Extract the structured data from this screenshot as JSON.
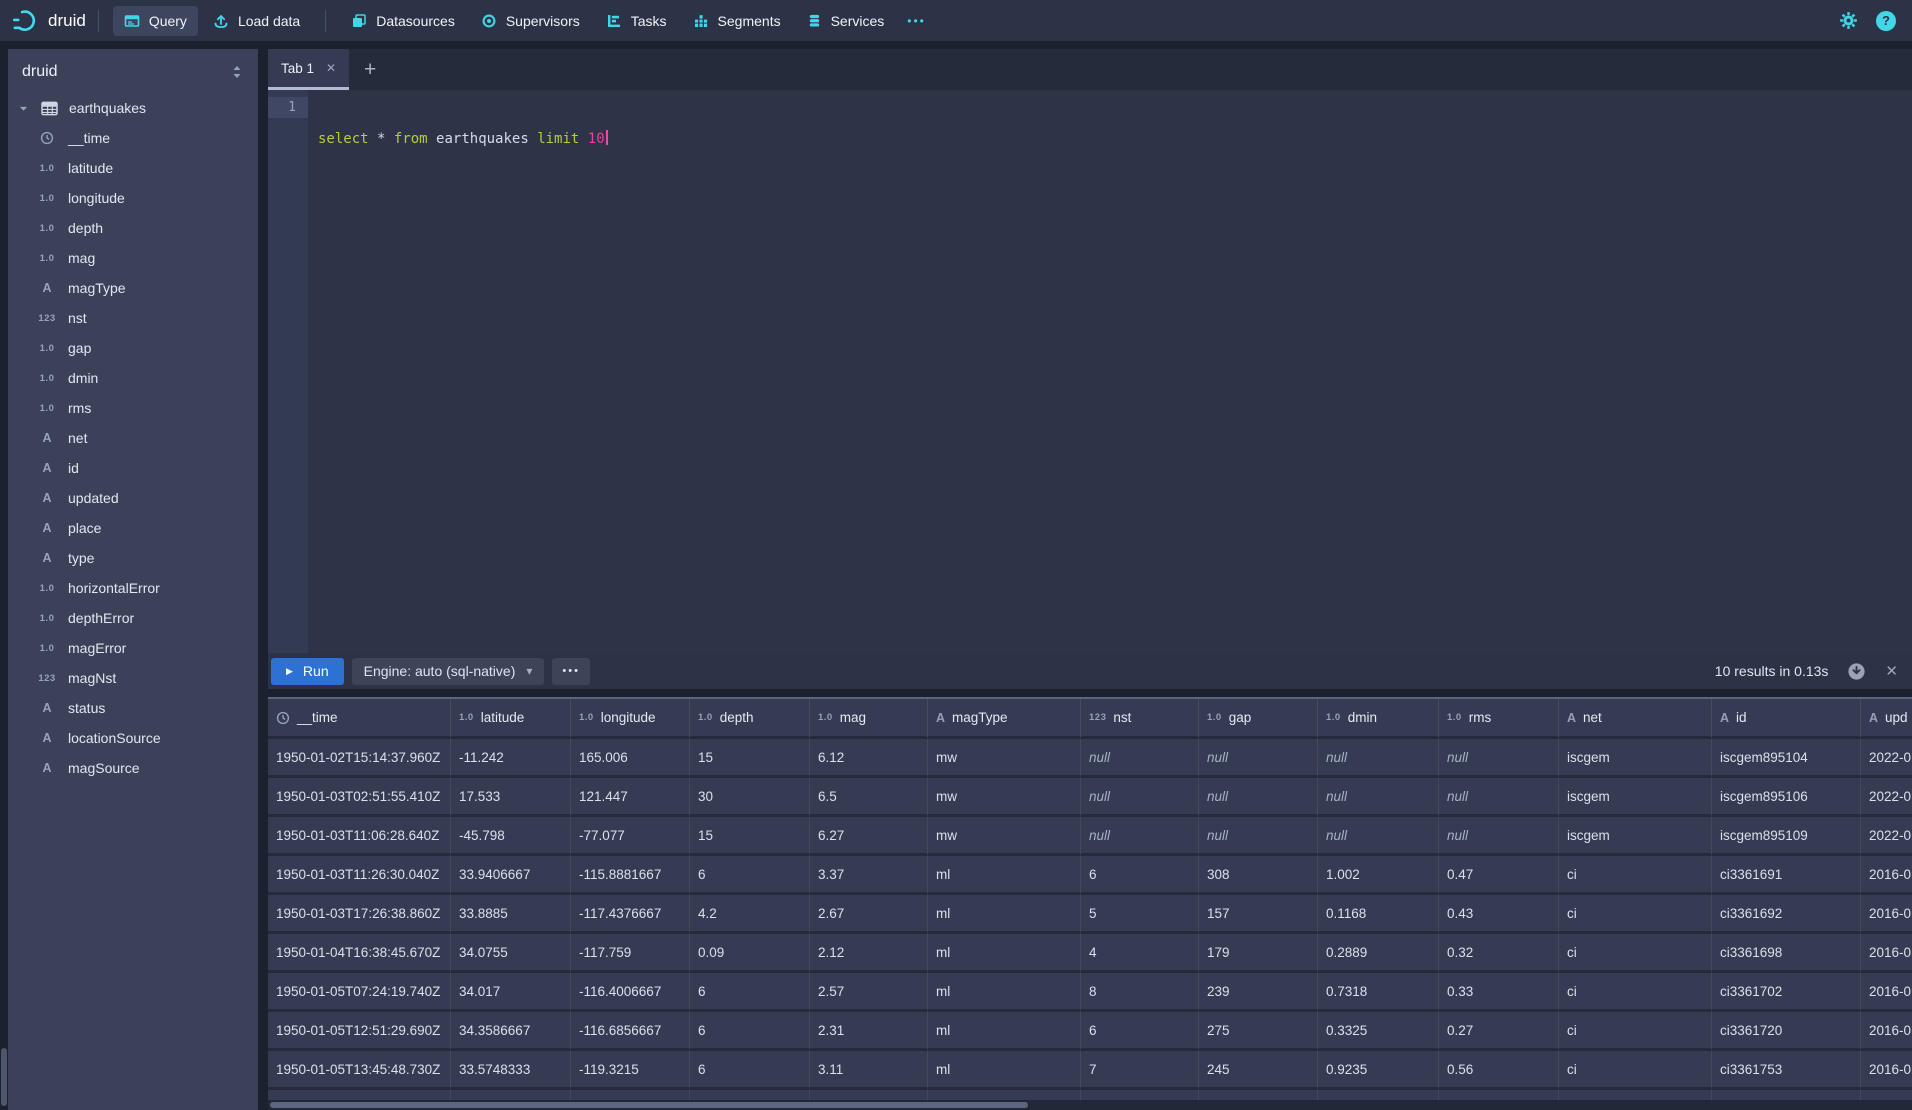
{
  "navbar": {
    "logo_text": "druid",
    "items": [
      {
        "label": "Query"
      },
      {
        "label": "Load data"
      },
      {
        "label": "Datasources"
      },
      {
        "label": "Supervisors"
      },
      {
        "label": "Tasks"
      },
      {
        "label": "Segments"
      },
      {
        "label": "Services"
      }
    ],
    "more_label": "•••",
    "help_glyph": "?"
  },
  "sidebar": {
    "schema_label": "druid",
    "table_name": "earthquakes",
    "columns": [
      {
        "type": "time",
        "label": "__time"
      },
      {
        "type": "num",
        "label": "latitude"
      },
      {
        "type": "num",
        "label": "longitude"
      },
      {
        "type": "num",
        "label": "depth"
      },
      {
        "type": "num",
        "label": "mag"
      },
      {
        "type": "str",
        "label": "magType"
      },
      {
        "type": "int",
        "label": "nst"
      },
      {
        "type": "num",
        "label": "gap"
      },
      {
        "type": "num",
        "label": "dmin"
      },
      {
        "type": "num",
        "label": "rms"
      },
      {
        "type": "str",
        "label": "net"
      },
      {
        "type": "str",
        "label": "id"
      },
      {
        "type": "str",
        "label": "updated"
      },
      {
        "type": "str",
        "label": "place"
      },
      {
        "type": "str",
        "label": "type"
      },
      {
        "type": "num",
        "label": "horizontalError"
      },
      {
        "type": "num",
        "label": "depthError"
      },
      {
        "type": "num",
        "label": "magError"
      },
      {
        "type": "int",
        "label": "magNst"
      },
      {
        "type": "str",
        "label": "status"
      },
      {
        "type": "str",
        "label": "locationSource"
      },
      {
        "type": "str",
        "label": "magSource"
      }
    ]
  },
  "editor": {
    "tab_label": "Tab 1",
    "line_number": "1",
    "sql_text": "select * from earthquakes limit 10",
    "sql_tokens": [
      {
        "text": "select",
        "type": "keyword"
      },
      {
        "text": " ",
        "type": "plain"
      },
      {
        "text": "*",
        "type": "plain"
      },
      {
        "text": " ",
        "type": "plain"
      },
      {
        "text": "from",
        "type": "keyword"
      },
      {
        "text": " ",
        "type": "plain"
      },
      {
        "text": "earthquakes",
        "type": "plain"
      },
      {
        "text": " ",
        "type": "plain"
      },
      {
        "text": "limit",
        "type": "keyword"
      },
      {
        "text": " ",
        "type": "plain"
      },
      {
        "text": "10",
        "type": "number"
      }
    ]
  },
  "run_bar": {
    "run_label": "Run",
    "engine_label": "Engine: auto (sql-native)",
    "more_label": "•••",
    "results_summary": "10 results in 0.13s"
  },
  "results": {
    "columns": [
      {
        "type": "time",
        "label": "__time"
      },
      {
        "type": "num",
        "label": "latitude"
      },
      {
        "type": "num",
        "label": "longitude"
      },
      {
        "type": "num",
        "label": "depth"
      },
      {
        "type": "num",
        "label": "mag"
      },
      {
        "type": "str",
        "label": "magType"
      },
      {
        "type": "int",
        "label": "nst"
      },
      {
        "type": "num",
        "label": "gap"
      },
      {
        "type": "num",
        "label": "dmin"
      },
      {
        "type": "num",
        "label": "rms"
      },
      {
        "type": "str",
        "label": "net"
      },
      {
        "type": "str",
        "label": "id"
      },
      {
        "type": "str",
        "label": "upd"
      }
    ],
    "null_display": "null",
    "rows": [
      [
        "1950-01-02T15:14:37.960Z",
        "-11.242",
        "165.006",
        "15",
        "6.12",
        "mw",
        "null",
        "null",
        "null",
        "null",
        "iscgem",
        "iscgem895104",
        "2022-0"
      ],
      [
        "1950-01-03T02:51:55.410Z",
        "17.533",
        "121.447",
        "30",
        "6.5",
        "mw",
        "null",
        "null",
        "null",
        "null",
        "iscgem",
        "iscgem895106",
        "2022-0"
      ],
      [
        "1950-01-03T11:06:28.640Z",
        "-45.798",
        "-77.077",
        "15",
        "6.27",
        "mw",
        "null",
        "null",
        "null",
        "null",
        "iscgem",
        "iscgem895109",
        "2022-0"
      ],
      [
        "1950-01-03T11:26:30.040Z",
        "33.9406667",
        "-115.8881667",
        "6",
        "3.37",
        "ml",
        "6",
        "308",
        "1.002",
        "0.47",
        "ci",
        "ci3361691",
        "2016-0"
      ],
      [
        "1950-01-03T17:26:38.860Z",
        "33.8885",
        "-117.4376667",
        "4.2",
        "2.67",
        "ml",
        "5",
        "157",
        "0.1168",
        "0.43",
        "ci",
        "ci3361692",
        "2016-0"
      ],
      [
        "1950-01-04T16:38:45.670Z",
        "34.0755",
        "-117.759",
        "0.09",
        "2.12",
        "ml",
        "4",
        "179",
        "0.2889",
        "0.32",
        "ci",
        "ci3361698",
        "2016-0"
      ],
      [
        "1950-01-05T07:24:19.740Z",
        "34.017",
        "-116.4006667",
        "6",
        "2.57",
        "ml",
        "8",
        "239",
        "0.7318",
        "0.33",
        "ci",
        "ci3361702",
        "2016-0"
      ],
      [
        "1950-01-05T12:51:29.690Z",
        "34.3586667",
        "-116.6856667",
        "6",
        "2.31",
        "ml",
        "6",
        "275",
        "0.3325",
        "0.27",
        "ci",
        "ci3361720",
        "2016-0"
      ],
      [
        "1950-01-05T13:45:48.730Z",
        "33.5748333",
        "-119.3215",
        "6",
        "3.11",
        "ml",
        "7",
        "245",
        "0.9235",
        "0.56",
        "ci",
        "ci3361753",
        "2016-0"
      ]
    ]
  },
  "colors": {
    "accent_cyan": "#41d6e8",
    "run_button_blue": "#2d72d2",
    "sql_keyword_green": "#b8cb3c",
    "sql_number_pink": "#ee3f9e",
    "navbar_bg": "#2d3347",
    "panel_bg": "#3a4159",
    "row_bg": "#343b52"
  }
}
